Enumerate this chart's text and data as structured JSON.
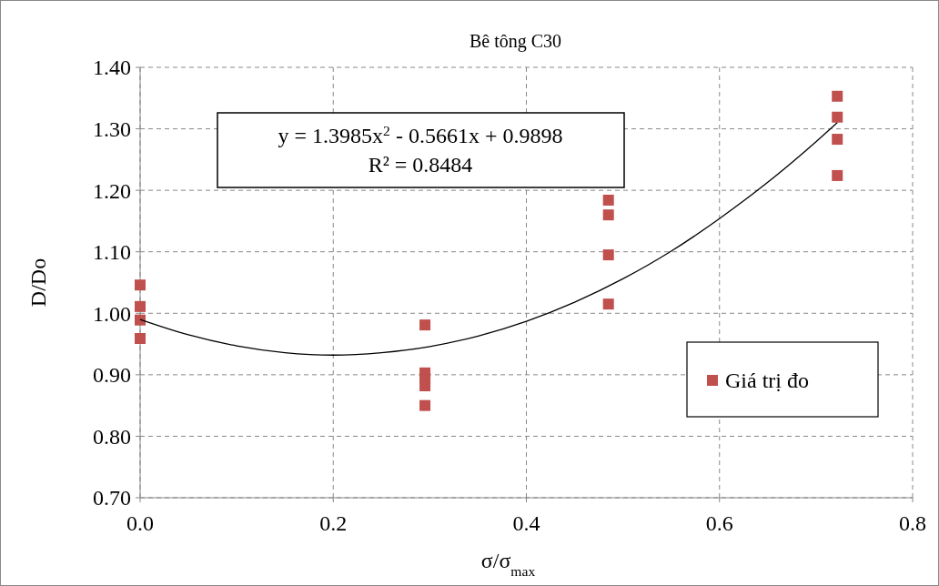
{
  "chart_data": {
    "type": "scatter",
    "title": "Bê tông C30",
    "xlabel": "σ/σ$_{max}$",
    "ylabel": "D/Do",
    "xlim": [
      0,
      0.8
    ],
    "ylim": [
      0.7,
      1.4
    ],
    "xticks": [
      {
        "value": 0,
        "label": "0.0"
      },
      {
        "value": 0.2,
        "label": "0.2"
      },
      {
        "value": 0.4,
        "label": "0.4"
      },
      {
        "value": 0.6,
        "label": "0.6"
      },
      {
        "value": 0.8,
        "label": "0.8"
      }
    ],
    "yticks": [
      {
        "value": 0.7,
        "label": "0.70"
      },
      {
        "value": 0.8,
        "label": "0.80"
      },
      {
        "value": 0.9,
        "label": "0.90"
      },
      {
        "value": 1.0,
        "label": "1.00"
      },
      {
        "value": 1.1,
        "label": "1.10"
      },
      {
        "value": 1.2,
        "label": "1.20"
      },
      {
        "value": 1.3,
        "label": "1.30"
      },
      {
        "value": 1.4,
        "label": "1.40"
      }
    ],
    "grid": true,
    "legend": "bottom right",
    "marker": "square",
    "annotations": [
      "y = 1.3985x$^{2}$ - 0.5661x + 0.9898",
      "R² = 0.8484"
    ],
    "series": [
      {
        "name": "Giá trị đo",
        "color": "#c0504d",
        "x": [
          0,
          0,
          0,
          0,
          0.295,
          0.295,
          0.295,
          0.295,
          0.295,
          0.485,
          0.485,
          0.485,
          0.485,
          0.722,
          0.722,
          0.722,
          0.722
        ],
        "values": [
          1.046,
          1.011,
          0.989,
          0.959,
          0.981,
          0.903,
          0.894,
          0.882,
          0.85,
          1.184,
          1.16,
          1.095,
          1.015,
          1.353,
          1.319,
          1.283,
          1.224
        ]
      },
      {
        "type": "line",
        "color": "#000000",
        "line_style": "solid",
        "marker": "none",
        "x": [
          0,
          0.05,
          0.1,
          0.15,
          0.2,
          0.25,
          0.3,
          0.35,
          0.4,
          0.45,
          0.5,
          0.55,
          0.6,
          0.65,
          0.7,
          0.722
        ],
        "values": [
          0.99,
          0.965,
          0.947,
          0.936,
          0.932,
          0.936,
          0.946,
          0.963,
          0.987,
          1.018,
          1.056,
          1.101,
          1.154,
          1.213,
          1.279,
          1.31
        ]
      }
    ]
  }
}
